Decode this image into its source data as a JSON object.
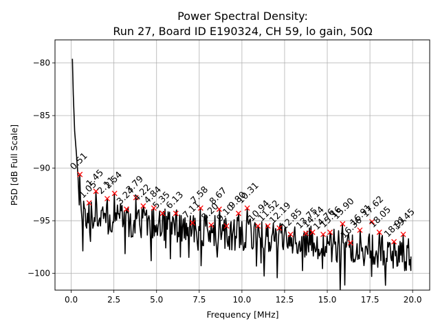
{
  "chart_data": {
    "type": "line",
    "title": "Power Spectral Density:",
    "subtitle": "Run 27, Board ID E190324, CH 59, lo gain, 50Ω",
    "xlabel": "Frequency [MHz]",
    "ylabel": "PSD [dB Full Scale]",
    "xlim": [
      -0.95,
      21.0
    ],
    "ylim": [
      -101.6,
      -77.8
    ],
    "grid": true,
    "legend": "none",
    "x_ticks": [
      0.0,
      2.5,
      5.0,
      7.5,
      10.0,
      12.5,
      15.0,
      17.5,
      20.0
    ],
    "x_tick_labels": [
      "0.0",
      "2.5",
      "5.0",
      "7.5",
      "10.0",
      "12.5",
      "15.0",
      "17.5",
      "20.0"
    ],
    "y_ticks": [
      -80,
      -85,
      -90,
      -95,
      -100
    ],
    "y_tick_labels": [
      "−80",
      "−85",
      "−90",
      "−95",
      "−100"
    ],
    "series": [
      {
        "name": "PSD",
        "color": "#000000",
        "start": {
          "x": 0.07,
          "y": -79.6
        },
        "decay_points": [
          {
            "x": 0.12,
            "y": -83.0
          },
          {
            "x": 0.2,
            "y": -86.5
          },
          {
            "x": 0.3,
            "y": -88.5
          },
          {
            "x": 0.4,
            "y": -90.8
          },
          {
            "x": 0.47,
            "y": -93.5
          }
        ],
        "end": {
          "x": 19.9,
          "y": -98.4
        },
        "min_point": {
          "x": 17.6,
          "y": -100.3
        },
        "noise_floor_start": -93.5,
        "noise_floor_end": -97.5
      }
    ],
    "peaks": {
      "color": "#ff0000",
      "marker": "x",
      "labels": [
        "0.51",
        "1.05",
        "1.45",
        "2.11",
        "2.54",
        "3.24",
        "3.79",
        "4.22",
        "4.84",
        "5.35",
        "6.13",
        "7.11",
        "7.58",
        "8.20",
        "8.67",
        "9.10",
        "9.80",
        "10.31",
        "10.94",
        "11.52",
        "12.19",
        "12.85",
        "13.75",
        "14.14",
        "14.76",
        "15.16",
        "15.90",
        "16.36",
        "16.91",
        "17.62",
        "18.05",
        "18.91",
        "19.45"
      ],
      "x": [
        0.51,
        1.05,
        1.45,
        2.11,
        2.54,
        3.24,
        3.79,
        4.22,
        4.84,
        5.35,
        6.13,
        7.11,
        7.58,
        8.2,
        8.67,
        9.1,
        9.8,
        10.31,
        10.94,
        11.52,
        12.19,
        12.85,
        13.75,
        14.14,
        14.76,
        15.16,
        15.9,
        16.36,
        16.91,
        17.62,
        18.05,
        18.91,
        19.45
      ],
      "y": [
        -90.6,
        -93.3,
        -92.2,
        -92.9,
        -92.4,
        -93.9,
        -92.8,
        -93.6,
        -93.8,
        -94.3,
        -94.3,
        -95.2,
        -93.8,
        -95.4,
        -93.9,
        -95.5,
        -94.3,
        -93.8,
        -95.5,
        -95.5,
        -95.7,
        -96.3,
        -96.2,
        -96.1,
        -96.3,
        -96.1,
        -95.3,
        -97.1,
        -95.9,
        -95.1,
        -96.1,
        -97.0,
        -96.3
      ]
    }
  }
}
